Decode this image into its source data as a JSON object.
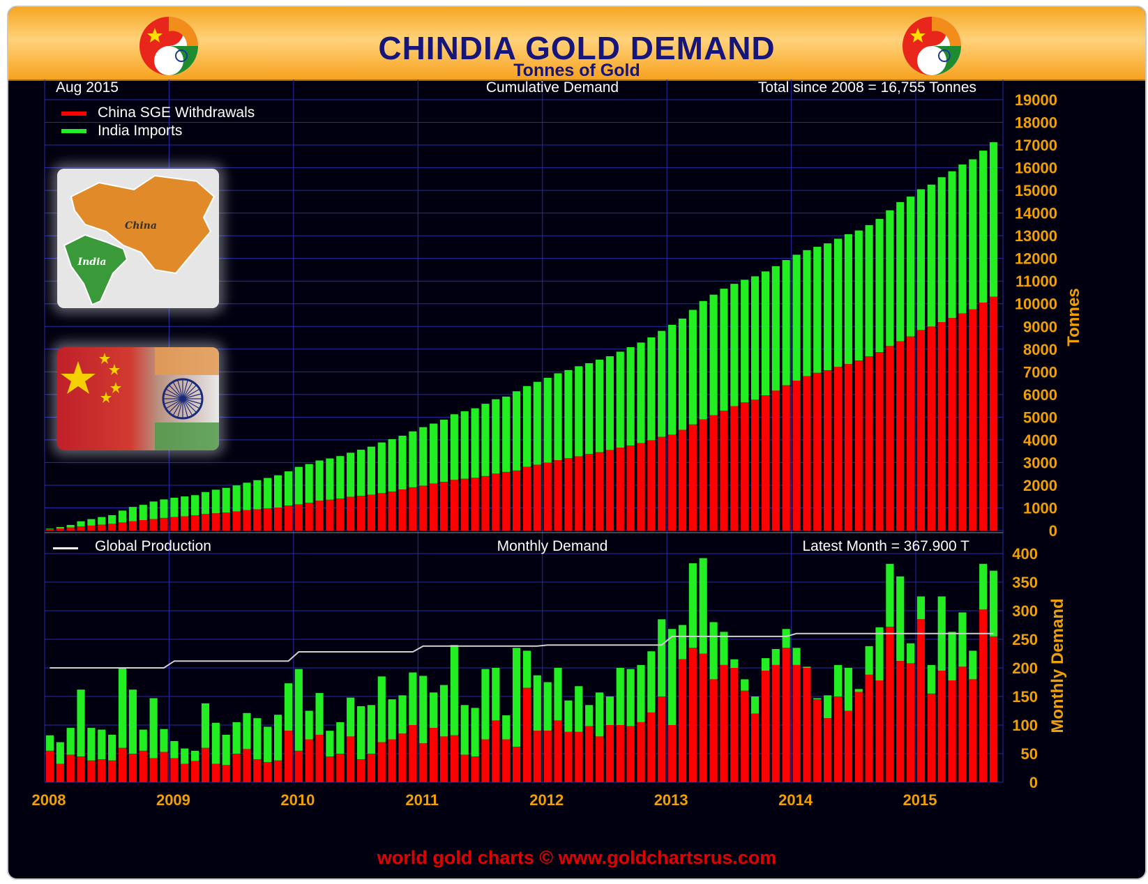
{
  "header": {
    "title": "CHINDIA GOLD DEMAND",
    "subtitle": "Tonnes of Gold"
  },
  "colors": {
    "china": "#ff0000",
    "india": "#22ee22",
    "production": "#d0d0d0",
    "axis_label": "#f0a000",
    "grid": "#2a2aa8",
    "footer": "#e00000"
  },
  "cumulative_panel": {
    "date_label": "Aug 2015",
    "panel_label": "Cumulative Demand",
    "total_label": "Total since 2008 = 16,755 Tonnes",
    "legend": [
      {
        "label": "China SGE Withdrawals",
        "color": "#ff0000"
      },
      {
        "label": "India Imports",
        "color": "#22ee22"
      }
    ],
    "y_axis_title": "Tonnes"
  },
  "monthly_panel": {
    "legend": [
      {
        "label": "Global Production",
        "color": "#ffffff"
      }
    ],
    "panel_label": "Monthly Demand",
    "latest_label": "Latest Month = 367.900 T",
    "y_axis_title": "Monthly Demand"
  },
  "map_labels": {
    "china": "China",
    "india": "India"
  },
  "footer": "world gold charts © www.goldchartsrus.com",
  "chart_data": [
    {
      "type": "bar",
      "stacked": true,
      "title": "Cumulative Demand",
      "ylabel": "Tonnes",
      "ylim": [
        0,
        19500
      ],
      "yticks": [
        0,
        1000,
        2000,
        3000,
        4000,
        5000,
        6000,
        7000,
        8000,
        9000,
        10000,
        11000,
        12000,
        13000,
        14000,
        15000,
        16000,
        17000,
        18000,
        19000
      ],
      "x_ticks": [
        "2008",
        "2009",
        "2010",
        "2011",
        "2012",
        "2013",
        "2014",
        "2015"
      ],
      "derived_from": "monthly",
      "last_total": 16755
    },
    {
      "type": "bar",
      "stacked": true,
      "title": "Monthly Demand",
      "ylabel": "Monthly Demand",
      "ylim": [
        0,
        400
      ],
      "yticks": [
        0,
        50,
        100,
        150,
        200,
        250,
        300,
        350,
        400
      ],
      "x_ticks": [
        "2008",
        "2009",
        "2010",
        "2011",
        "2012",
        "2013",
        "2014",
        "2015"
      ],
      "x_start": "2008-01",
      "x_end": "2015-08",
      "series": [
        {
          "name": "China SGE Withdrawals",
          "values": [
            55,
            32,
            48,
            45,
            38,
            40,
            38,
            60,
            50,
            55,
            42,
            53,
            42,
            32,
            37,
            60,
            32,
            30,
            50,
            58,
            40,
            35,
            38,
            90,
            55,
            75,
            83,
            45,
            50,
            80,
            40,
            50,
            70,
            75,
            85,
            100,
            68,
            95,
            80,
            82,
            48,
            45,
            75,
            108,
            75,
            62,
            165,
            90,
            90,
            108,
            88,
            88,
            98,
            80,
            100,
            100,
            98,
            105,
            122,
            150,
            100,
            215,
            235,
            225,
            180,
            205,
            200,
            160,
            120,
            195,
            205,
            235,
            205,
            200,
            145,
            112,
            150,
            125,
            158,
            188,
            178,
            272,
            212,
            208,
            285,
            155,
            195,
            178,
            202,
            180,
            302,
            255
          ]
        },
        {
          "name": "India Imports",
          "values": [
            27,
            38,
            47,
            117,
            57,
            52,
            45,
            140,
            112,
            37,
            105,
            40,
            30,
            27,
            18,
            78,
            72,
            53,
            55,
            63,
            72,
            62,
            80,
            83,
            143,
            50,
            73,
            45,
            55,
            68,
            93,
            85,
            115,
            70,
            67,
            92,
            118,
            62,
            90,
            158,
            87,
            85,
            123,
            92,
            42,
            173,
            65,
            97,
            85,
            92,
            55,
            80,
            37,
            77,
            50,
            100,
            100,
            100,
            107,
            135,
            168,
            60,
            148,
            167,
            100,
            58,
            15,
            20,
            30,
            22,
            28,
            33,
            30,
            2,
            2,
            40,
            55,
            75,
            5,
            50,
            93,
            110,
            148,
            35,
            40,
            50,
            130,
            85,
            95,
            50,
            80,
            115
          ]
        },
        {
          "name": "Global Production",
          "type": "line",
          "values": [
            200,
            200,
            200,
            200,
            200,
            200,
            200,
            200,
            200,
            200,
            200,
            200,
            212,
            212,
            212,
            212,
            212,
            212,
            212,
            212,
            212,
            212,
            212,
            212,
            228,
            228,
            228,
            228,
            228,
            228,
            228,
            228,
            228,
            228,
            228,
            228,
            238,
            238,
            238,
            238,
            238,
            238,
            238,
            238,
            238,
            238,
            238,
            238,
            240,
            240,
            240,
            240,
            240,
            240,
            240,
            240,
            240,
            240,
            240,
            240,
            255,
            255,
            255,
            255,
            255,
            255,
            255,
            255,
            255,
            255,
            255,
            255,
            260,
            260,
            260,
            260,
            260,
            260,
            260,
            260,
            260,
            260,
            260,
            260,
            260,
            260,
            260,
            260,
            260,
            260,
            260,
            260
          ]
        }
      ]
    }
  ]
}
